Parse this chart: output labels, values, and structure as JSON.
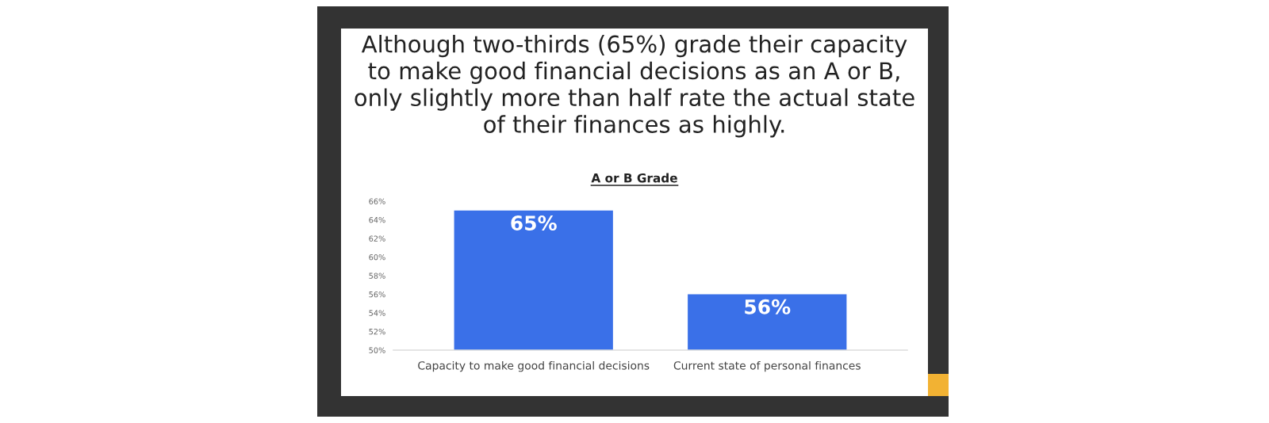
{
  "chart_data": {
    "type": "bar",
    "title": "Although two-thirds (65%) grade their capacity\nto make good financial decisions as an A or B,\nonly slightly more than half rate the actual state\nof their finances as highly.",
    "subtitle": "A or B Grade",
    "categories": [
      "Capacity to make good financial decisions",
      "Current state of personal finances"
    ],
    "values": [
      65,
      56
    ],
    "value_labels": [
      "65%",
      "56%"
    ],
    "color": "#3a70e8",
    "ylim": [
      50,
      66
    ],
    "yticks": [
      {
        "value": 50,
        "label": "50%"
      },
      {
        "value": 52,
        "label": "52%"
      },
      {
        "value": 54,
        "label": "54%"
      },
      {
        "value": 56,
        "label": "56%"
      },
      {
        "value": 58,
        "label": "58%"
      },
      {
        "value": 60,
        "label": "60%"
      },
      {
        "value": 62,
        "label": "62%"
      },
      {
        "value": 64,
        "label": "64%"
      },
      {
        "value": 66,
        "label": "66%"
      }
    ],
    "grid": false,
    "legend": false
  }
}
